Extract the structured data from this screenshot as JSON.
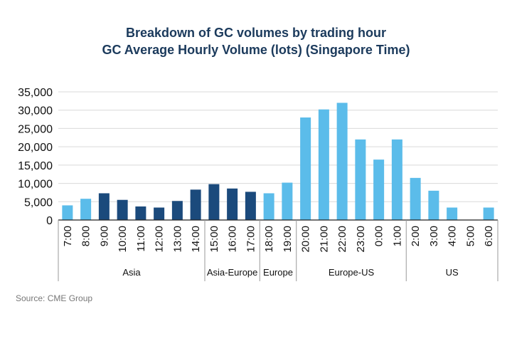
{
  "chart_data": {
    "type": "bar",
    "title": "Breakdown of GC volumes by trading hour",
    "subtitle": "GC Average Hourly Volume (lots) (Singapore Time)",
    "xlabel": "",
    "ylabel": "",
    "ylim": [
      0,
      35000
    ],
    "yticks": [
      "0",
      "5,000",
      "10,000",
      "15,000",
      "20,000",
      "25,000",
      "30,000",
      "35,000"
    ],
    "grid": true,
    "categories": [
      "7:00",
      "8:00",
      "9:00",
      "10:00",
      "11:00",
      "12:00",
      "13:00",
      "14:00",
      "15:00",
      "16:00",
      "17:00",
      "18:00",
      "19:00",
      "20:00",
      "21:00",
      "22:00",
      "23:00",
      "0:00",
      "1:00",
      "2:00",
      "3:00",
      "4:00",
      "5:00",
      "6:00"
    ],
    "values": [
      4000,
      5800,
      7300,
      5500,
      3700,
      3400,
      5200,
      8300,
      9800,
      8600,
      7700,
      7300,
      10200,
      28000,
      30200,
      32000,
      22000,
      16500,
      22000,
      11500,
      8000,
      3400,
      0,
      3400
    ],
    "colors": [
      "#5bbcea",
      "#5bbcea",
      "#1b4a7c",
      "#1b4a7c",
      "#1b4a7c",
      "#1b4a7c",
      "#1b4a7c",
      "#1b4a7c",
      "#1b4a7c",
      "#1b4a7c",
      "#1b4a7c",
      "#5bbcea",
      "#5bbcea",
      "#5bbcea",
      "#5bbcea",
      "#5bbcea",
      "#5bbcea",
      "#5bbcea",
      "#5bbcea",
      "#5bbcea",
      "#5bbcea",
      "#5bbcea",
      "#5bbcea",
      "#5bbcea"
    ],
    "sessions": [
      {
        "label": "Asia",
        "start": 0,
        "end": 7
      },
      {
        "label": "Asia-Europe",
        "start": 8,
        "end": 10
      },
      {
        "label": "Europe",
        "start": 11,
        "end": 12
      },
      {
        "label": "Europe-US",
        "start": 13,
        "end": 18
      },
      {
        "label": "US",
        "start": 19,
        "end": 23
      }
    ]
  },
  "source": "Source: CME Group"
}
